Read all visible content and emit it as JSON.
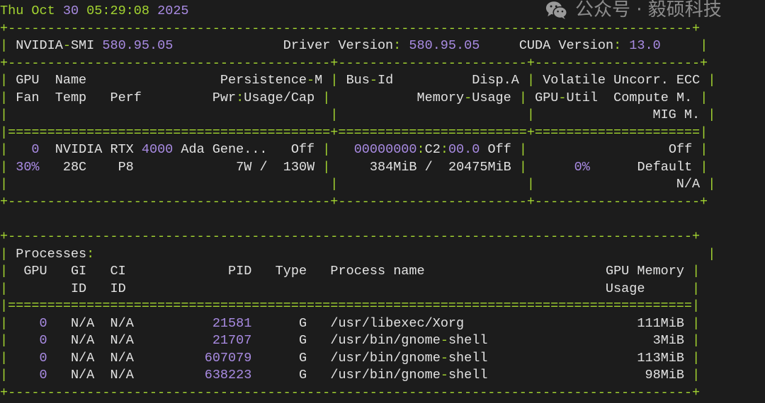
{
  "timestamp": "Thu Oct 30 05:29:08 2025",
  "header": {
    "smi_label": "NVIDIA-SMI",
    "smi_version": "580.95.05",
    "driver_label": "Driver Version:",
    "driver_version": "580.95.05",
    "cuda_label": "CUDA Version:",
    "cuda_version": "13.0"
  },
  "gpu_table": {
    "headers": {
      "gpu": "GPU",
      "name": "Name",
      "persistence": "Persistence-M",
      "bus_id": "Bus-Id",
      "disp": "Disp.A",
      "ecc": "Volatile Uncorr. ECC",
      "fan": "Fan",
      "temp": "Temp",
      "perf": "Perf",
      "pwr": "Pwr:Usage/Cap",
      "memory": "Memory-Usage",
      "util": "GPU-Util",
      "compute": "Compute M.",
      "mig": "MIG M."
    },
    "gpus": [
      {
        "index": "0",
        "name": "NVIDIA RTX 4000 Ada Gene...",
        "persistence": "Off",
        "bus_id": "00000000:C2:00.0",
        "disp": "Off",
        "ecc": "Off",
        "fan": "30%",
        "temp": "28C",
        "perf": "P8",
        "pwr_usage": "7W",
        "pwr_cap": "130W",
        "mem_used": "384MiB",
        "mem_total": "20475MiB",
        "util": "0%",
        "compute": "Default",
        "mig": "N/A"
      }
    ]
  },
  "processes": {
    "title": "Processes:",
    "headers": {
      "gpu": "GPU",
      "gi": "GI",
      "ci": "CI",
      "pid": "PID",
      "type": "Type",
      "name": "Process name",
      "mem": "GPU Memory",
      "gi2": "ID",
      "ci2": "ID",
      "mem2": "Usage"
    },
    "rows": [
      {
        "gpu": "0",
        "gi": "N/A",
        "ci": "N/A",
        "pid": "21581",
        "type": "G",
        "name": "/usr/libexec/Xorg",
        "mem": "111MiB"
      },
      {
        "gpu": "0",
        "gi": "N/A",
        "ci": "N/A",
        "pid": "21707",
        "type": "G",
        "name": "/usr/bin/gnome-shell",
        "mem": "3MiB"
      },
      {
        "gpu": "0",
        "gi": "N/A",
        "ci": "N/A",
        "pid": "607079",
        "type": "G",
        "name": "/usr/bin/gnome-shell",
        "mem": "113MiB"
      },
      {
        "gpu": "0",
        "gi": "N/A",
        "ci": "N/A",
        "pid": "638223",
        "type": "G",
        "name": "/usr/bin/gnome-shell",
        "mem": "98MiB"
      }
    ]
  },
  "colors": {
    "green": "#a3d431",
    "purple": "#a98be3",
    "text": "#e2e2e2",
    "background": "#1c1c1c"
  },
  "watermark": {
    "icon": "wechat-icon",
    "text": "公众号 · 毅硕科技"
  }
}
